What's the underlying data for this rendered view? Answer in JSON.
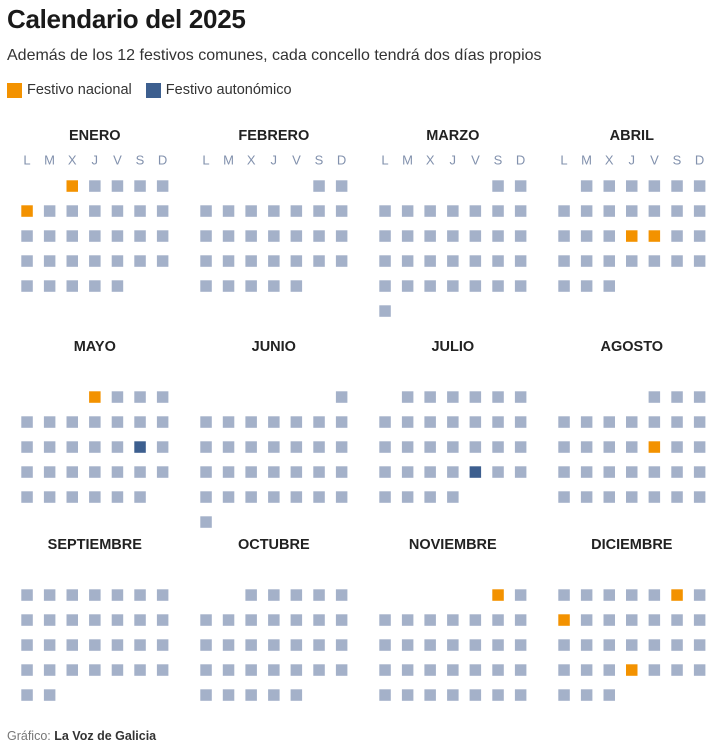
{
  "title": "Calendario del 2025",
  "subtitle": "Además de los 12 festivos comunes, cada concello tendrá dos días propios",
  "legend": [
    {
      "label": "Festivo nacional",
      "color": "#f39200"
    },
    {
      "label": "Festivo autonómico",
      "color": "#3d5f8f"
    }
  ],
  "colors": {
    "regular_day": "#a4b1c9",
    "weekday_header": "#8291ad",
    "national": "#f39200",
    "regional": "#3d5f8f"
  },
  "footer": {
    "prefix": "Gráfico:",
    "source": "La Voz de Galicia"
  },
  "chart_data": {
    "type": "table",
    "year": 2025,
    "weekday_labels": [
      "L",
      "M",
      "X",
      "J",
      "V",
      "S",
      "D"
    ],
    "months": [
      {
        "name": "ENERO",
        "start_weekday": 3,
        "days": 31,
        "national": [
          1,
          6
        ],
        "regional": []
      },
      {
        "name": "FEBRERO",
        "start_weekday": 6,
        "days": 28,
        "national": [],
        "regional": []
      },
      {
        "name": "MARZO",
        "start_weekday": 6,
        "days": 31,
        "national": [],
        "regional": []
      },
      {
        "name": "ABRIL",
        "start_weekday": 2,
        "days": 30,
        "national": [
          17,
          18
        ],
        "regional": []
      },
      {
        "name": "MAYO",
        "start_weekday": 4,
        "days": 31,
        "national": [
          1
        ],
        "regional": [
          17
        ]
      },
      {
        "name": "JUNIO",
        "start_weekday": 7,
        "days": 30,
        "national": [],
        "regional": []
      },
      {
        "name": "JULIO",
        "start_weekday": 2,
        "days": 31,
        "national": [],
        "regional": [
          25
        ]
      },
      {
        "name": "AGOSTO",
        "start_weekday": 5,
        "days": 31,
        "national": [
          15
        ],
        "regional": []
      },
      {
        "name": "SEPTIEMBRE",
        "start_weekday": 1,
        "days": 30,
        "national": [],
        "regional": []
      },
      {
        "name": "OCTUBRE",
        "start_weekday": 3,
        "days": 31,
        "national": [],
        "regional": []
      },
      {
        "name": "NOVIEMBRE",
        "start_weekday": 6,
        "days": 30,
        "national": [
          1
        ],
        "regional": []
      },
      {
        "name": "DICIEMBRE",
        "start_weekday": 1,
        "days": 31,
        "national": [
          6,
          8,
          25
        ],
        "regional": []
      }
    ]
  }
}
